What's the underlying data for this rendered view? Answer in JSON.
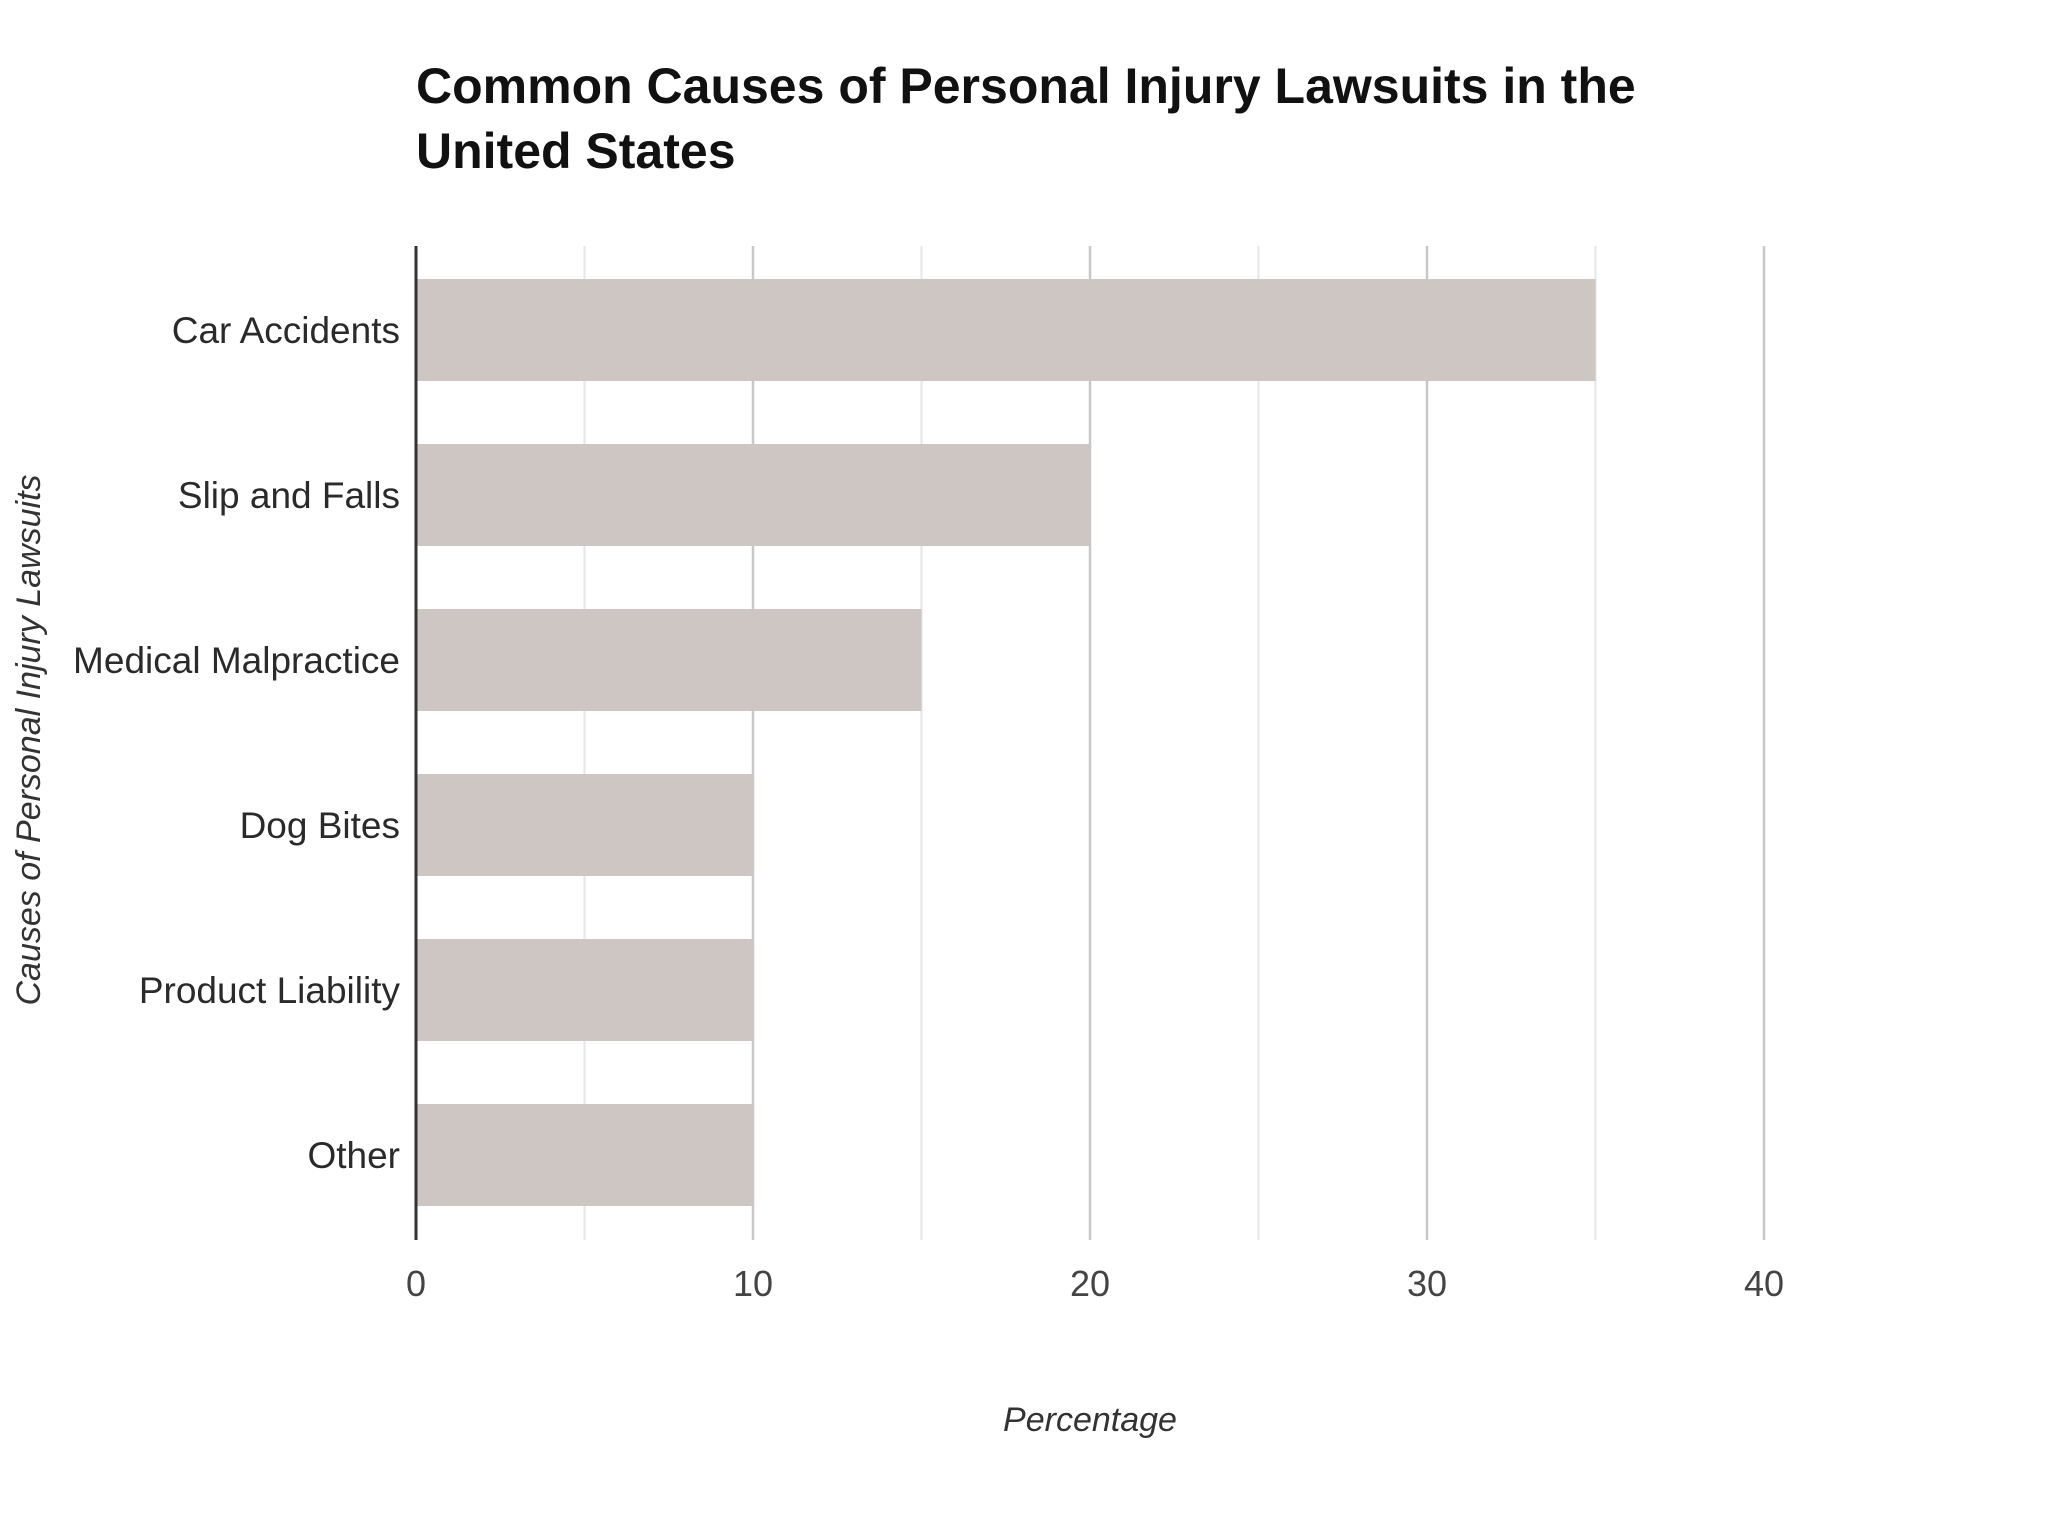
{
  "chart_data": {
    "type": "bar",
    "orientation": "horizontal",
    "title_lines": [
      "Common Causes of Personal Injury Lawsuits in the",
      "United States"
    ],
    "xlabel": "Percentage",
    "ylabel": "Causes of Personal Injury Lawsuits",
    "categories": [
      "Car Accidents",
      "Slip and Falls",
      "Medical Malpractice",
      "Dog Bites",
      "Product Liability",
      "Other"
    ],
    "values": [
      35,
      20,
      15,
      10,
      10,
      10
    ],
    "xlim": [
      0,
      40
    ],
    "xticks": [
      0,
      10,
      20,
      30,
      40
    ],
    "x_minor_grid": [
      5,
      15,
      25,
      35
    ],
    "grid": true,
    "legend": false,
    "colors": {
      "bar": "#cdc6c3",
      "major_grid": "#c8c8c8",
      "minor_grid": "#e6e6e6",
      "axis": "#333333"
    }
  }
}
